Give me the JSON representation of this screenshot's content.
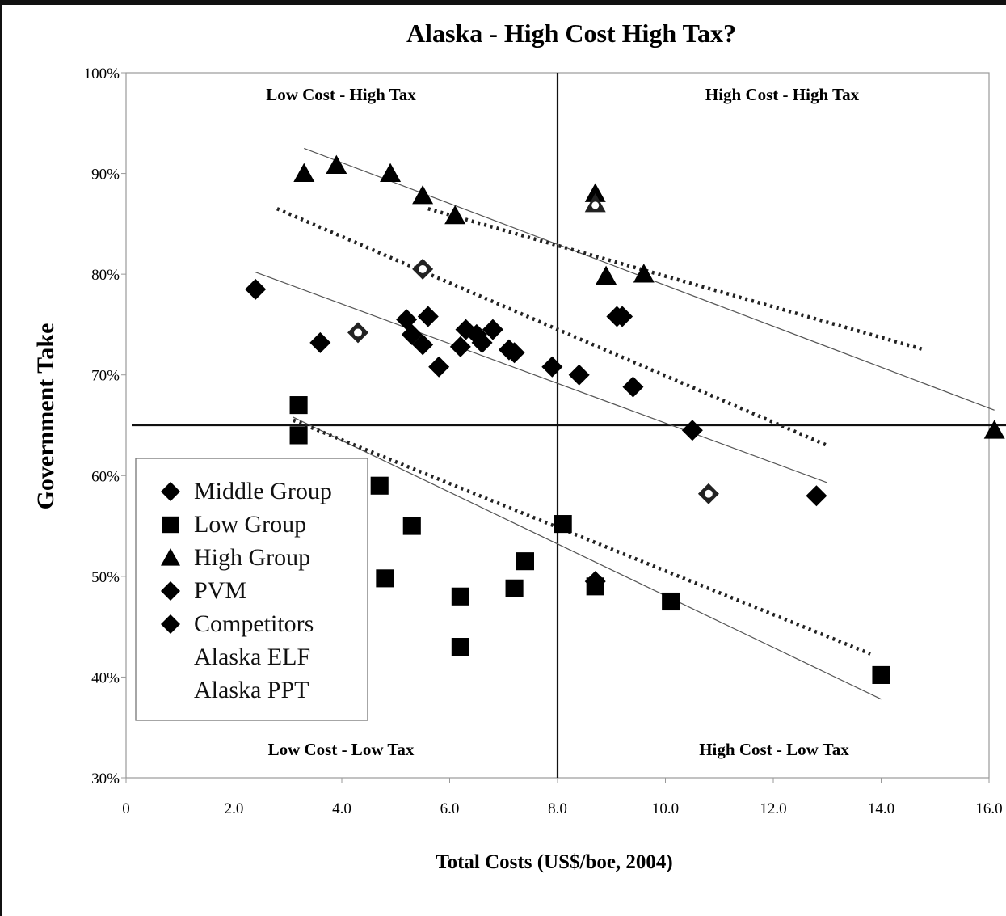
{
  "chart_data": {
    "type": "scatter",
    "title": "Alaska - High Cost High Tax?",
    "xlabel": "Total Costs (US$/boe, 2004)",
    "ylabel": "Government Take",
    "xlim": [
      0,
      16
    ],
    "ylim": [
      30,
      100
    ],
    "x_ticks": [
      "0",
      "2.0",
      "4.0",
      "6.0",
      "8.0",
      "10.0",
      "12.0",
      "14.0",
      "16.0"
    ],
    "y_ticks": [
      "30%",
      "40%",
      "50%",
      "60%",
      "70%",
      "80%",
      "90%",
      "100%"
    ],
    "grid": false,
    "legend_placement": "bottom-left",
    "quadrant_labels": {
      "top_left": "Low Cost - High Tax",
      "top_right": "High Cost - High Tax",
      "bottom_left": "Low Cost - Low Tax",
      "bottom_right": "High Cost - Low Tax"
    },
    "divider_x": 8.0,
    "divider_y": 65,
    "series": [
      {
        "name": "Middle Group",
        "marker": "diamond",
        "color": "#000000",
        "points": [
          [
            2.4,
            78.5
          ],
          [
            3.6,
            73.2
          ],
          [
            5.2,
            75.5
          ],
          [
            5.3,
            74
          ],
          [
            5.5,
            73
          ],
          [
            5.6,
            75.8
          ],
          [
            5.8,
            70.8
          ],
          [
            6.2,
            72.8
          ],
          [
            6.3,
            74.5
          ],
          [
            6.5,
            74
          ],
          [
            6.6,
            73.2
          ],
          [
            6.8,
            74.5
          ],
          [
            7.1,
            72.5
          ],
          [
            7.2,
            72.2
          ],
          [
            7.9,
            70.8
          ],
          [
            8.4,
            70
          ],
          [
            9.1,
            75.8
          ],
          [
            9.4,
            68.8
          ],
          [
            10.5,
            64.5
          ],
          [
            12.8,
            58
          ]
        ]
      },
      {
        "name": "Low Group",
        "marker": "square",
        "color": "#000000",
        "points": [
          [
            3.2,
            67
          ],
          [
            3.2,
            64
          ],
          [
            4.7,
            59
          ],
          [
            4.8,
            49.8
          ],
          [
            5.3,
            55
          ],
          [
            6.2,
            48
          ],
          [
            6.2,
            43
          ],
          [
            7.2,
            48.8
          ],
          [
            7.4,
            51.5
          ],
          [
            8.1,
            55.2
          ],
          [
            8.7,
            49
          ],
          [
            10.1,
            47.5
          ],
          [
            14.0,
            40.2
          ]
        ]
      },
      {
        "name": "High Group",
        "marker": "triangle",
        "color": "#000000",
        "points": [
          [
            3.3,
            90
          ],
          [
            3.9,
            90.8
          ],
          [
            4.9,
            90
          ],
          [
            5.5,
            87.8
          ],
          [
            6.1,
            85.8
          ],
          [
            8.7,
            88
          ],
          [
            8.9,
            79.8
          ],
          [
            9.6,
            80
          ],
          [
            16.1,
            64.5
          ]
        ]
      },
      {
        "name": "PVM",
        "marker": "diamond",
        "color": "#000000",
        "points": [
          [
            8.7,
            49.5
          ]
        ]
      },
      {
        "name": "Competitors",
        "marker": "diamond",
        "color": "#000000",
        "points": [
          [
            9.2,
            75.8
          ]
        ]
      },
      {
        "name": "Alaska ELF",
        "marker": "diamond-open",
        "color": "#555555",
        "points": [
          [
            4.3,
            74.2
          ],
          [
            5.5,
            80.5
          ],
          [
            10.8,
            58.2
          ]
        ]
      },
      {
        "name": "Alaska PPT",
        "marker": "triangle-open",
        "color": "#555555",
        "points": [
          [
            8.7,
            87
          ]
        ]
      }
    ],
    "trend_lines": [
      {
        "style": "solid",
        "from": [
          3.3,
          92.5
        ],
        "to": [
          16.1,
          66.5
        ]
      },
      {
        "style": "solid",
        "from": [
          2.4,
          80.2
        ],
        "to": [
          13.0,
          59.3
        ]
      },
      {
        "style": "solid",
        "from": [
          3.1,
          65.8
        ],
        "to": [
          14.0,
          37.8
        ]
      },
      {
        "style": "dotted",
        "from": [
          5.6,
          86.5
        ],
        "to": [
          14.8,
          72.5
        ]
      },
      {
        "style": "dotted",
        "from": [
          2.8,
          86.5
        ],
        "to": [
          13.0,
          63.0
        ]
      },
      {
        "style": "dotted",
        "from": [
          3.1,
          65.5
        ],
        "to": [
          13.8,
          42.3
        ]
      }
    ]
  }
}
